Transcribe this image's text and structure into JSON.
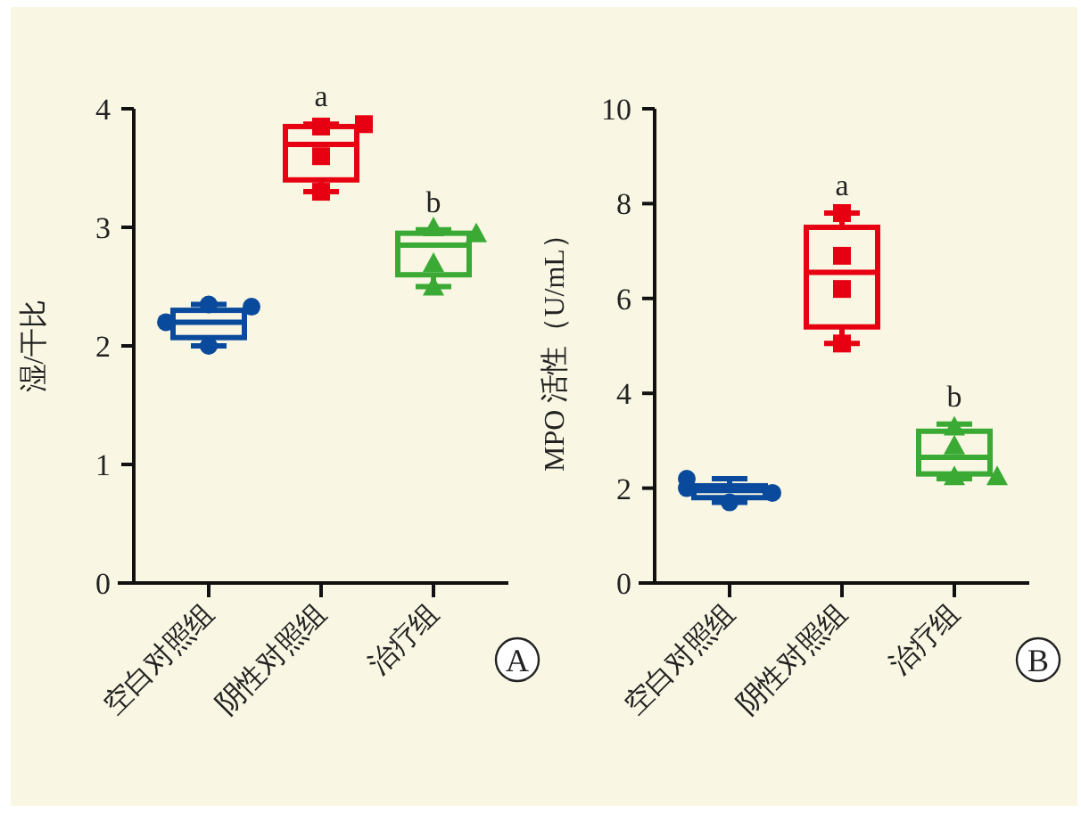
{
  "chart_data": [
    {
      "type": "box",
      "ylabel": "湿/干比",
      "ylim": [
        0,
        4
      ],
      "yticks": [
        0,
        1,
        2,
        3,
        4
      ],
      "categories": [
        "空白对照组",
        "阴性对照组",
        "治疗组"
      ],
      "colors": [
        "#0a4a9c",
        "#e60012",
        "#3aaa35"
      ],
      "boxes": [
        {
          "low": 2.0,
          "q1": 2.07,
          "median": 2.2,
          "q3": 2.3,
          "high": 2.35
        },
        {
          "low": 3.3,
          "q1": 3.4,
          "median": 3.7,
          "q3": 3.85,
          "high": 3.87
        },
        {
          "low": 2.5,
          "q1": 2.6,
          "median": 2.85,
          "q3": 2.95,
          "high": 2.98
        }
      ],
      "series": [
        {
          "type": "scatter",
          "marker": "circle",
          "color": "#0a4a9c",
          "x": [
            "空白对照组",
            "空白对照组",
            "空白对照组",
            "空白对照组"
          ],
          "values": [
            2.35,
            2.33,
            2.2,
            2.0
          ]
        },
        {
          "type": "scatter",
          "marker": "square",
          "color": "#e60012",
          "x": [
            "阴性对照组",
            "阴性对照组",
            "阴性对照组",
            "阴性对照组"
          ],
          "values": [
            3.85,
            3.87,
            3.6,
            3.3
          ]
        },
        {
          "type": "scatter",
          "marker": "triangle",
          "color": "#3aaa35",
          "x": [
            "治疗组",
            "治疗组",
            "治疗组",
            "治疗组"
          ],
          "values": [
            3.0,
            2.95,
            2.7,
            2.5
          ]
        }
      ],
      "annotations": [
        {
          "text": "a",
          "x": "阴性对照组",
          "y": 3.87
        },
        {
          "text": "b",
          "x": "治疗组",
          "y": 2.98
        },
        "A"
      ]
    },
    {
      "type": "box",
      "ylabel": "MPO 活性（U/mL）",
      "ylim": [
        0,
        10
      ],
      "yticks": [
        0,
        2,
        4,
        6,
        8,
        10
      ],
      "categories": [
        "空白对照组",
        "阴性对照组",
        "治疗组"
      ],
      "colors": [
        "#0a4a9c",
        "#e60012",
        "#3aaa35"
      ],
      "boxes": [
        {
          "low": 1.7,
          "q1": 1.8,
          "median": 1.95,
          "q3": 2.05,
          "high": 2.2
        },
        {
          "low": 5.05,
          "q1": 5.4,
          "median": 6.55,
          "q3": 7.5,
          "high": 7.8
        },
        {
          "low": 2.2,
          "q1": 2.3,
          "median": 2.65,
          "q3": 3.2,
          "high": 3.35
        }
      ],
      "series": [
        {
          "type": "scatter",
          "marker": "circle",
          "color": "#0a4a9c",
          "x": [
            "空白对照组",
            "空白对照组",
            "空白对照组",
            "空白对照组"
          ],
          "values": [
            1.7,
            1.9,
            2.0,
            2.2
          ]
        },
        {
          "type": "scatter",
          "marker": "square",
          "color": "#e60012",
          "x": [
            "阴性对照组",
            "阴性对照组",
            "阴性对照组",
            "阴性对照组"
          ],
          "values": [
            7.8,
            6.9,
            6.2,
            5.05
          ]
        },
        {
          "type": "scatter",
          "marker": "triangle",
          "color": "#3aaa35",
          "x": [
            "治疗组",
            "治疗组",
            "治疗组",
            "治疗组"
          ],
          "values": [
            3.3,
            2.9,
            2.25,
            2.25
          ]
        }
      ],
      "annotations": [
        {
          "text": "a",
          "x": "阴性对照组",
          "y": 7.8
        },
        {
          "text": "b",
          "x": "治疗组",
          "y": 3.35
        },
        "B"
      ]
    }
  ]
}
